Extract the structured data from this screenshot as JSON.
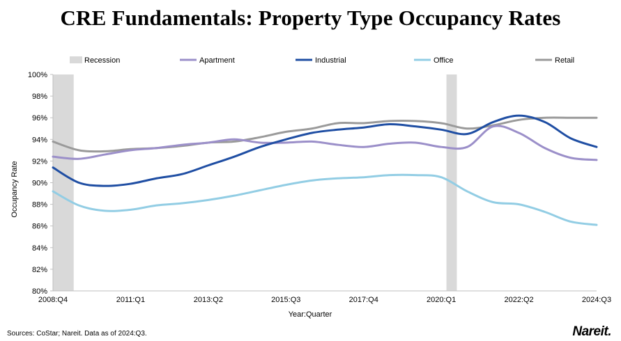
{
  "title": "CRE Fundamentals: Property Type Occupancy Rates",
  "source_note": "Sources: CoStar; Nareit. Data as of 2024:Q3.",
  "brand": "Nareit.",
  "chart_data": {
    "type": "line",
    "title": "CRE Fundamentals: Property Type Occupancy Rates",
    "xlabel": "Year:Quarter",
    "ylabel": "Occupancy Rate",
    "ylim": [
      80,
      100
    ],
    "yticks": [
      80,
      82,
      84,
      86,
      88,
      90,
      92,
      94,
      96,
      98,
      100
    ],
    "ytick_labels": [
      "80%",
      "82%",
      "84%",
      "86%",
      "88%",
      "90%",
      "92%",
      "94%",
      "96%",
      "98%",
      "100%"
    ],
    "x_start": "2008:Q4",
    "x_end": "2024:Q3",
    "x_step_quarters": 3,
    "xtick_labels": [
      "2008:Q4",
      "2011:Q1",
      "2013:Q2",
      "2015:Q3",
      "2017:Q4",
      "2020:Q1",
      "2022:Q2",
      "2024:Q3"
    ],
    "xtick_index": [
      0,
      3,
      6,
      9,
      12,
      15,
      18,
      21
    ],
    "grid": false,
    "legend_position": "top",
    "recessions": [
      {
        "name": "Recession",
        "start_index": 0,
        "end_index": 0.8,
        "color": "#d9d9d9"
      },
      {
        "name": "Recession",
        "start_index": 15.2,
        "end_index": 15.6,
        "color": "#d9d9d9"
      }
    ],
    "series": [
      {
        "name": "Apartment",
        "color": "#9b8fc9",
        "values": [
          92.4,
          92.2,
          92.6,
          93.0,
          93.2,
          93.5,
          93.7,
          94.0,
          93.7,
          93.7,
          93.8,
          93.5,
          93.3,
          93.6,
          93.7,
          93.3,
          93.3,
          95.2,
          94.6,
          93.2,
          92.3,
          92.1
        ]
      },
      {
        "name": "Industrial",
        "color": "#1f4ea3",
        "values": [
          91.4,
          90.0,
          89.7,
          89.9,
          90.4,
          90.8,
          91.6,
          92.4,
          93.3,
          94.0,
          94.6,
          94.9,
          95.1,
          95.4,
          95.2,
          94.9,
          94.5,
          95.6,
          96.2,
          95.6,
          94.1,
          93.3
        ]
      },
      {
        "name": "Office",
        "color": "#92cde4",
        "values": [
          89.2,
          87.9,
          87.4,
          87.5,
          87.9,
          88.1,
          88.4,
          88.8,
          89.3,
          89.8,
          90.2,
          90.4,
          90.5,
          90.7,
          90.7,
          90.5,
          89.2,
          88.2,
          88.0,
          87.3,
          86.4,
          86.1
        ]
      },
      {
        "name": "Retail",
        "color": "#9a9a9a",
        "values": [
          93.8,
          93.0,
          92.9,
          93.1,
          93.2,
          93.4,
          93.7,
          93.8,
          94.2,
          94.7,
          95.0,
          95.5,
          95.5,
          95.7,
          95.7,
          95.5,
          95.0,
          95.3,
          95.8,
          96.0,
          96.0,
          96.0
        ]
      }
    ]
  }
}
